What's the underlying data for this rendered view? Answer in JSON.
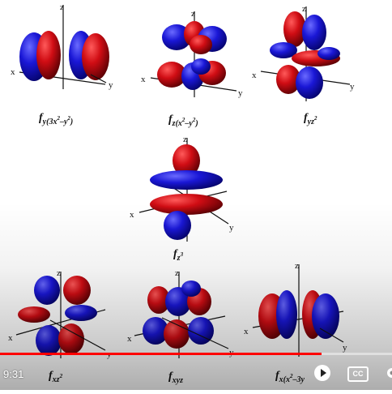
{
  "orbitals": [
    {
      "id": "fy3x2y2",
      "label_base": "f",
      "label_sub": "y(3x",
      "label_sup": "2",
      "label_sub2": "–y",
      "label_sup2": "2",
      "label_tail": ")"
    },
    {
      "id": "fzx2y2",
      "label_base": "f",
      "label_sub": "z(x",
      "label_sup": "2",
      "label_sub2": "–y",
      "label_sup2": "2",
      "label_tail": ")"
    },
    {
      "id": "fyz2",
      "label_base": "f",
      "label_sub": "yz",
      "label_sup": "2"
    },
    {
      "id": "fz3",
      "label_base": "f",
      "label_sub": "z",
      "label_sup": "3"
    },
    {
      "id": "fxz2",
      "label_base": "f",
      "label_sub": "xz",
      "label_sup": "2"
    },
    {
      "id": "fxyz",
      "label_base": "f",
      "label_sub": "xyz"
    },
    {
      "id": "fxx23y2",
      "label_base": "f",
      "label_sub": "x(x",
      "label_sup": "2",
      "label_sub2": "–3y"
    }
  ],
  "axes": {
    "x": "x",
    "y": "y",
    "z": "z"
  },
  "colors": {
    "lobe_red": "#d00d14",
    "lobe_blue": "#1a17d6",
    "progress": "#ff0000"
  },
  "player": {
    "time": "9:31",
    "progress_fraction": 0.82,
    "play_icon": "play-icon",
    "cc_label": "CC",
    "settings_icon": "gear-icon"
  }
}
